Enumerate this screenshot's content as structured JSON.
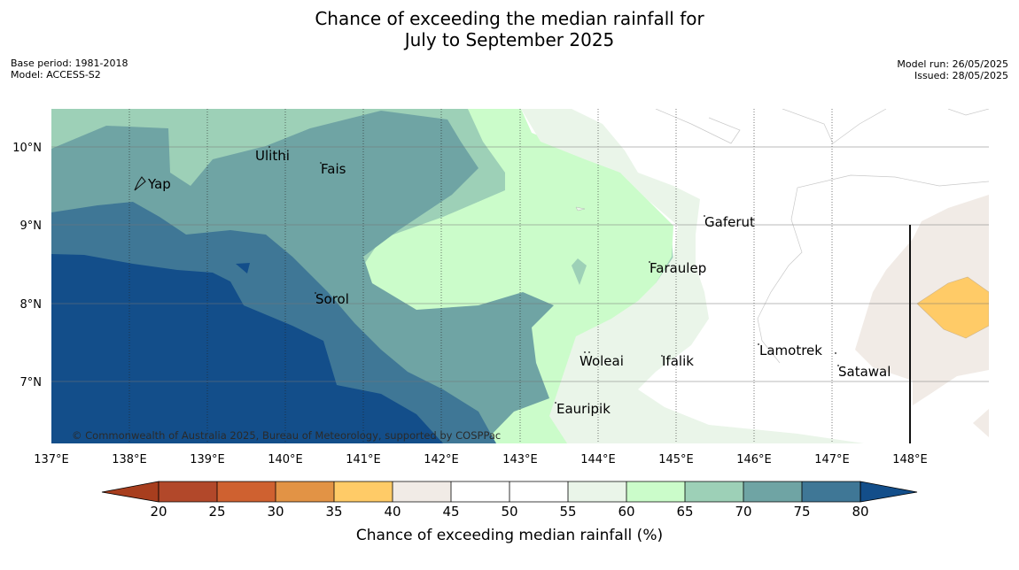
{
  "title": {
    "line1": "Chance of exceeding the median rainfall for",
    "line2": "July to September 2025"
  },
  "info_left": {
    "base_period": "Base period: 1981-2018",
    "model": "Model: ACCESS-S2"
  },
  "info_right": {
    "model_run": "Model run: 26/05/2025",
    "issued": "Issued: 28/05/2025"
  },
  "map": {
    "lon_ticks": [
      "137°E",
      "138°E",
      "139°E",
      "140°E",
      "141°E",
      "142°E",
      "143°E",
      "144°E",
      "145°E",
      "146°E",
      "147°E",
      "148°E"
    ],
    "lat_ticks": [
      "10°N",
      "9°N",
      "8°N",
      "7°N"
    ],
    "places": [
      "Ulithi",
      "Fais",
      "Yap",
      "Gaferut",
      "Faraulep",
      "Sorol",
      "Woleai",
      "Ifalik",
      "Lamotrek",
      "Satawal",
      "Eauripik"
    ],
    "copyright": "© Commonwealth of Australia 2025, Bureau of Meteorology, supported by COSPPac",
    "colors": {
      "p75_80": "#3f7796",
      "p80_plus": "#134e8a",
      "p70_75": "#6fa4a4",
      "p65_70": "#9dd0b7",
      "p60_65": "#cbfcca",
      "p55_60": "#eaf5e9",
      "p40_45": "#f1ebe6",
      "p35_40": "#ffcb67"
    }
  },
  "colorbar": {
    "ticks": [
      "20",
      "25",
      "30",
      "35",
      "40",
      "45",
      "50",
      "55",
      "60",
      "65",
      "70",
      "75",
      "80"
    ],
    "colors": [
      "#a83e1e",
      "#b2482a",
      "#cf6130",
      "#e29345",
      "#ffcb67",
      "#f1ebe6",
      "#ffffff",
      "#ffffff",
      "#eaf5e9",
      "#cbfcca",
      "#9dd0b7",
      "#6fa4a4",
      "#3f7796",
      "#134e8a"
    ],
    "title": "Chance of exceeding median rainfall (%)"
  }
}
